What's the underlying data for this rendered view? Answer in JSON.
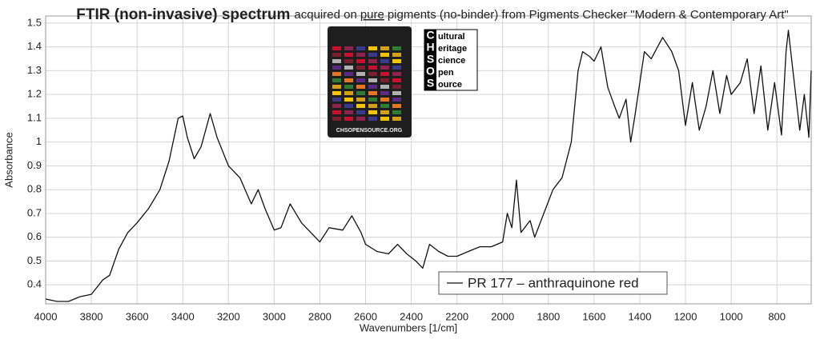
{
  "chart_data": {
    "type": "line",
    "title": "FTIR (non-invasive) spectrum",
    "subtitle_parts": [
      "acquired on",
      "pure",
      "pigments (no-binder) from Pigments Checker \"Modern & Contemporary Art\""
    ],
    "x_label": "Wavenumbers [1/cm]",
    "y_label": "Absorbance",
    "logo_caption": "CHSOPENSOURCE.ORG",
    "logo_letters": [
      "C",
      "H",
      "S",
      "O",
      "S"
    ],
    "logo_rest": [
      "ultural",
      "eritage",
      "cience",
      "pen",
      "ource"
    ],
    "x": [
      4000,
      3950,
      3900,
      3850,
      3800,
      3750,
      3720,
      3680,
      3640,
      3600,
      3550,
      3500,
      3460,
      3420,
      3400,
      3380,
      3350,
      3320,
      3280,
      3250,
      3200,
      3150,
      3100,
      3070,
      3040,
      3000,
      2970,
      2930,
      2880,
      2840,
      2800,
      2760,
      2700,
      2660,
      2620,
      2600,
      2550,
      2500,
      2460,
      2420,
      2380,
      2350,
      2320,
      2280,
      2240,
      2200,
      2150,
      2100,
      2050,
      2000,
      1980,
      1960,
      1940,
      1920,
      1880,
      1860,
      1820,
      1780,
      1740,
      1700,
      1670,
      1650,
      1620,
      1600,
      1570,
      1540,
      1510,
      1490,
      1460,
      1440,
      1420,
      1380,
      1350,
      1300,
      1260,
      1230,
      1200,
      1170,
      1140,
      1110,
      1080,
      1050,
      1020,
      1000,
      960,
      930,
      900,
      870,
      840,
      810,
      780,
      760,
      750,
      730,
      700,
      680,
      660,
      650
    ],
    "series": [
      {
        "name": "PR 177 – anthraquinone red",
        "color": "#111111",
        "values": [
          0.34,
          0.33,
          0.33,
          0.35,
          0.36,
          0.42,
          0.44,
          0.55,
          0.62,
          0.66,
          0.72,
          0.8,
          0.92,
          1.1,
          1.11,
          1.02,
          0.93,
          0.98,
          1.12,
          1.02,
          0.9,
          0.85,
          0.74,
          0.8,
          0.72,
          0.63,
          0.64,
          0.74,
          0.66,
          0.62,
          0.58,
          0.64,
          0.63,
          0.69,
          0.62,
          0.57,
          0.54,
          0.53,
          0.57,
          0.53,
          0.5,
          0.47,
          0.57,
          0.54,
          0.52,
          0.52,
          0.54,
          0.56,
          0.56,
          0.58,
          0.7,
          0.64,
          0.84,
          0.62,
          0.67,
          0.6,
          0.7,
          0.8,
          0.85,
          1.0,
          1.3,
          1.38,
          1.36,
          1.34,
          1.4,
          1.23,
          1.15,
          1.1,
          1.18,
          1.0,
          1.12,
          1.38,
          1.35,
          1.44,
          1.38,
          1.3,
          1.07,
          1.25,
          1.05,
          1.15,
          1.3,
          1.12,
          1.28,
          1.2,
          1.25,
          1.35,
          1.12,
          1.32,
          1.05,
          1.25,
          1.03,
          1.38,
          1.47,
          1.3,
          1.05,
          1.2,
          1.02,
          1.3
        ]
      }
    ],
    "xlim": [
      4000,
      650
    ],
    "xticks": [
      4000,
      3800,
      3600,
      3400,
      3200,
      3000,
      2800,
      2600,
      2400,
      2200,
      2000,
      1800,
      1600,
      1400,
      1200,
      1000,
      800
    ],
    "ylim": [
      0.32,
      1.53
    ],
    "yticks": [
      0.4,
      0.5,
      0.6,
      0.7,
      0.8,
      0.9,
      1,
      1.1,
      1.2,
      1.3,
      1.4,
      1.5
    ],
    "grid": true,
    "legend": "lower center"
  }
}
